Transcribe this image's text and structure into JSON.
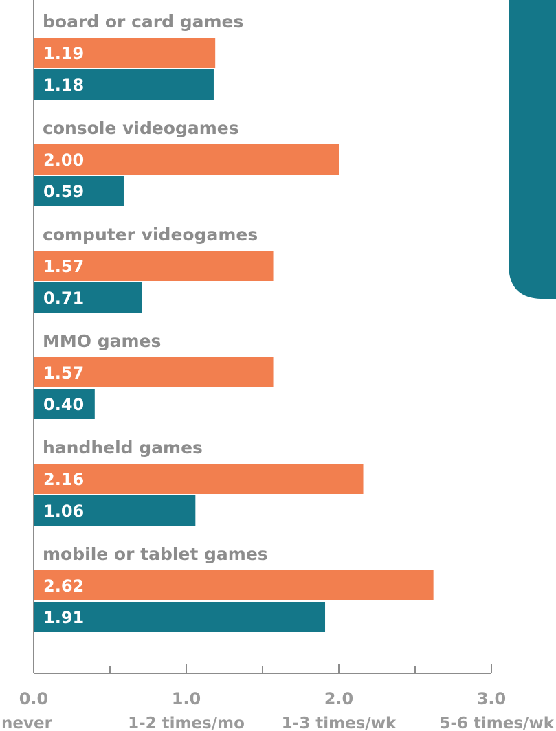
{
  "colors": {
    "series_a": "#F27F4F",
    "series_b": "#147789",
    "category_text": "#8C8C8C",
    "axis_text": "#9A9A9A",
    "axis_line": "#8C8C8C",
    "bar_text": "#FFFFFF",
    "side_panel": "#147789"
  },
  "chart_data": {
    "type": "bar",
    "orientation": "horizontal",
    "categories": [
      "board or card games",
      "console videogames",
      "computer videogames",
      "MMO games",
      "handheld games",
      "mobile or tablet games"
    ],
    "series": [
      {
        "values": [
          1.19,
          2.0,
          1.57,
          1.57,
          2.16,
          2.62
        ],
        "labels": [
          "1.19",
          "2.00",
          "1.57",
          "1.57",
          "2.16",
          "2.62"
        ]
      },
      {
        "values": [
          1.18,
          0.59,
          0.71,
          0.4,
          1.06,
          1.91
        ],
        "labels": [
          "1.18",
          "0.59",
          "0.71",
          "0.40",
          "1.06",
          "1.91"
        ]
      }
    ],
    "xlim": [
      0,
      3
    ],
    "x_ticks": [
      {
        "value": 0,
        "label": "0.0",
        "description": "never"
      },
      {
        "value": 1,
        "label": "1.0",
        "description": "1-2 times/mo"
      },
      {
        "value": 2,
        "label": "2.0",
        "description": "1-3 times/wk"
      },
      {
        "value": 3,
        "label": "3.0",
        "description": "5-6 times/wk"
      }
    ],
    "minor_ticks": [
      0.5,
      1.5,
      2.5
    ],
    "grid": false
  }
}
